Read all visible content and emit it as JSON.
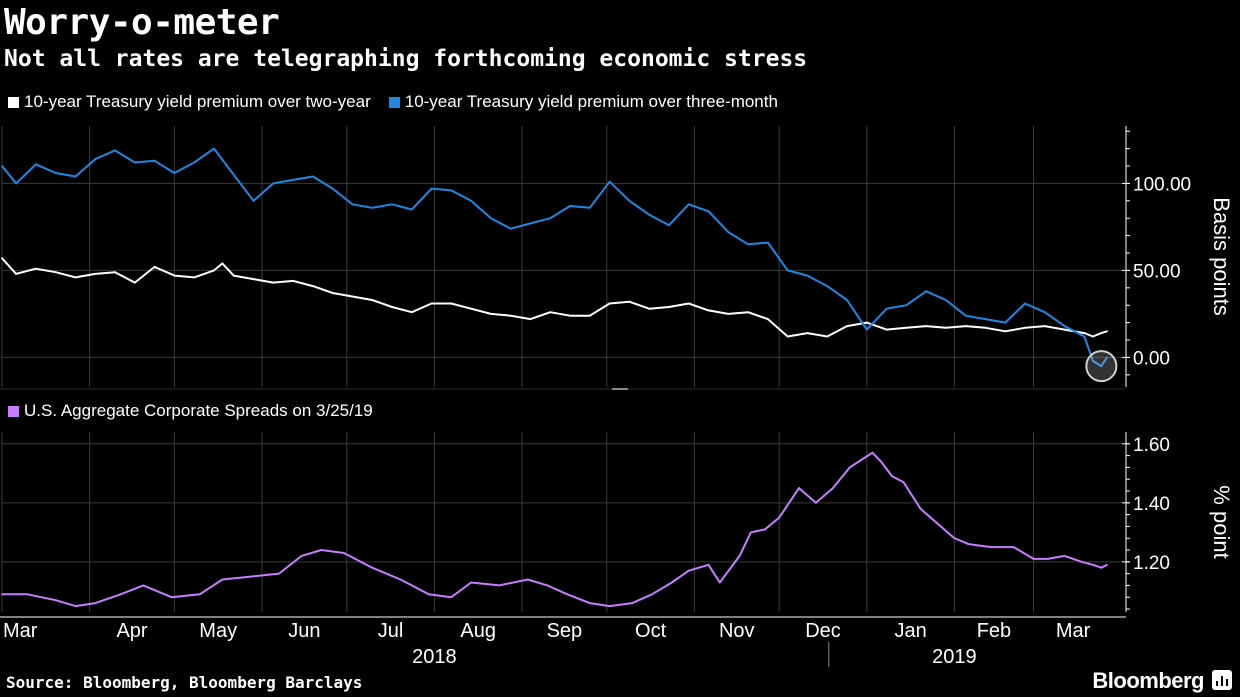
{
  "header": {
    "title": "Worry-o-meter",
    "subtitle": "Not all rates are telegraphing forthcoming economic stress"
  },
  "footer": {
    "source": "Source: Bloomberg, Bloomberg Barclays",
    "brand": "Bloomberg"
  },
  "colors": {
    "background": "#000000",
    "grid": "#3a3a3a",
    "series_2y": "#ffffff",
    "series_3m": "#1e88e5",
    "series_corp": "#c77dff"
  },
  "chart_data": [
    {
      "type": "line",
      "x_type": "date",
      "x_range": [
        "2018-03-01",
        "2019-03-27"
      ],
      "ylabel": "Basis points",
      "ylim": [
        -17,
        133
      ],
      "yticks": [
        0,
        50,
        100
      ],
      "ytick_labels": [
        "0.00",
        "50.00",
        "100.00"
      ],
      "legend_position": "top-left",
      "grid": true,
      "series": [
        {
          "name": "10-year Treasury yield premium over two-year",
          "color": "#ffffff",
          "points": [
            [
              "2018-03-01",
              57
            ],
            [
              "2018-03-06",
              48
            ],
            [
              "2018-03-13",
              51
            ],
            [
              "2018-03-20",
              49
            ],
            [
              "2018-03-27",
              46
            ],
            [
              "2018-04-03",
              48
            ],
            [
              "2018-04-10",
              49
            ],
            [
              "2018-04-17",
              43
            ],
            [
              "2018-04-24",
              52
            ],
            [
              "2018-05-01",
              47
            ],
            [
              "2018-05-08",
              46
            ],
            [
              "2018-05-15",
              50
            ],
            [
              "2018-05-18",
              54
            ],
            [
              "2018-05-22",
              47
            ],
            [
              "2018-05-29",
              45
            ],
            [
              "2018-06-05",
              43
            ],
            [
              "2018-06-12",
              44
            ],
            [
              "2018-06-19",
              41
            ],
            [
              "2018-06-26",
              37
            ],
            [
              "2018-07-03",
              35
            ],
            [
              "2018-07-10",
              33
            ],
            [
              "2018-07-17",
              29
            ],
            [
              "2018-07-24",
              26
            ],
            [
              "2018-07-31",
              31
            ],
            [
              "2018-08-07",
              31
            ],
            [
              "2018-08-14",
              28
            ],
            [
              "2018-08-21",
              25
            ],
            [
              "2018-08-28",
              24
            ],
            [
              "2018-09-04",
              22
            ],
            [
              "2018-09-11",
              26
            ],
            [
              "2018-09-18",
              24
            ],
            [
              "2018-09-25",
              24
            ],
            [
              "2018-10-02",
              31
            ],
            [
              "2018-10-09",
              32
            ],
            [
              "2018-10-16",
              28
            ],
            [
              "2018-10-23",
              29
            ],
            [
              "2018-10-30",
              31
            ],
            [
              "2018-11-06",
              27
            ],
            [
              "2018-11-13",
              25
            ],
            [
              "2018-11-20",
              26
            ],
            [
              "2018-11-27",
              22
            ],
            [
              "2018-12-04",
              12
            ],
            [
              "2018-12-11",
              14
            ],
            [
              "2018-12-18",
              12
            ],
            [
              "2018-12-25",
              18
            ],
            [
              "2019-01-01",
              20
            ],
            [
              "2019-01-08",
              16
            ],
            [
              "2019-01-15",
              17
            ],
            [
              "2019-01-22",
              18
            ],
            [
              "2019-01-29",
              17
            ],
            [
              "2019-02-05",
              18
            ],
            [
              "2019-02-12",
              17
            ],
            [
              "2019-02-19",
              15
            ],
            [
              "2019-02-26",
              17
            ],
            [
              "2019-03-05",
              18
            ],
            [
              "2019-03-12",
              16
            ],
            [
              "2019-03-19",
              14
            ],
            [
              "2019-03-22",
              12
            ],
            [
              "2019-03-25",
              14
            ],
            [
              "2019-03-27",
              15
            ]
          ]
        },
        {
          "name": "10-year Treasury yield premium over three-month",
          "color": "#1e88e5",
          "points": [
            [
              "2018-03-01",
              110
            ],
            [
              "2018-03-06",
              100
            ],
            [
              "2018-03-13",
              111
            ],
            [
              "2018-03-20",
              106
            ],
            [
              "2018-03-27",
              104
            ],
            [
              "2018-04-03",
              114
            ],
            [
              "2018-04-10",
              119
            ],
            [
              "2018-04-17",
              112
            ],
            [
              "2018-04-24",
              113
            ],
            [
              "2018-05-01",
              106
            ],
            [
              "2018-05-08",
              112
            ],
            [
              "2018-05-15",
              120
            ],
            [
              "2018-05-22",
              105
            ],
            [
              "2018-05-29",
              90
            ],
            [
              "2018-06-05",
              100
            ],
            [
              "2018-06-12",
              102
            ],
            [
              "2018-06-19",
              104
            ],
            [
              "2018-06-26",
              97
            ],
            [
              "2018-07-03",
              88
            ],
            [
              "2018-07-10",
              86
            ],
            [
              "2018-07-17",
              88
            ],
            [
              "2018-07-24",
              85
            ],
            [
              "2018-07-31",
              97
            ],
            [
              "2018-08-07",
              96
            ],
            [
              "2018-08-14",
              90
            ],
            [
              "2018-08-21",
              80
            ],
            [
              "2018-08-28",
              74
            ],
            [
              "2018-09-04",
              77
            ],
            [
              "2018-09-11",
              80
            ],
            [
              "2018-09-18",
              87
            ],
            [
              "2018-09-25",
              86
            ],
            [
              "2018-10-02",
              101
            ],
            [
              "2018-10-09",
              90
            ],
            [
              "2018-10-16",
              82
            ],
            [
              "2018-10-23",
              76
            ],
            [
              "2018-10-30",
              88
            ],
            [
              "2018-11-06",
              84
            ],
            [
              "2018-11-13",
              72
            ],
            [
              "2018-11-20",
              65
            ],
            [
              "2018-11-27",
              66
            ],
            [
              "2018-12-04",
              50
            ],
            [
              "2018-12-11",
              47
            ],
            [
              "2018-12-18",
              41
            ],
            [
              "2018-12-25",
              33
            ],
            [
              "2019-01-01",
              16
            ],
            [
              "2019-01-08",
              28
            ],
            [
              "2019-01-15",
              30
            ],
            [
              "2019-01-22",
              38
            ],
            [
              "2019-01-29",
              33
            ],
            [
              "2019-02-05",
              24
            ],
            [
              "2019-02-12",
              22
            ],
            [
              "2019-02-19",
              20
            ],
            [
              "2019-02-26",
              31
            ],
            [
              "2019-03-05",
              26
            ],
            [
              "2019-03-12",
              18
            ],
            [
              "2019-03-19",
              12
            ],
            [
              "2019-03-22",
              -2
            ],
            [
              "2019-03-25",
              -5
            ],
            [
              "2019-03-27",
              0
            ]
          ]
        }
      ]
    },
    {
      "type": "line",
      "x_type": "date",
      "x_range": [
        "2018-03-01",
        "2019-03-27"
      ],
      "ylabel": "% point",
      "ylim": [
        1.03,
        1.64
      ],
      "yticks": [
        1.2,
        1.4,
        1.6
      ],
      "ytick_labels": [
        "1.20",
        "1.40",
        "1.60"
      ],
      "legend_position": "top-left",
      "grid": true,
      "series": [
        {
          "name": "U.S. Aggregate Corporate Spreads on 3/25/19",
          "color": "#c77dff",
          "points": [
            [
              "2018-03-01",
              1.09
            ],
            [
              "2018-03-10",
              1.09
            ],
            [
              "2018-03-20",
              1.07
            ],
            [
              "2018-03-27",
              1.05
            ],
            [
              "2018-04-03",
              1.06
            ],
            [
              "2018-04-12",
              1.09
            ],
            [
              "2018-04-20",
              1.12
            ],
            [
              "2018-04-30",
              1.08
            ],
            [
              "2018-05-10",
              1.09
            ],
            [
              "2018-05-18",
              1.14
            ],
            [
              "2018-05-28",
              1.15
            ],
            [
              "2018-06-07",
              1.16
            ],
            [
              "2018-06-15",
              1.22
            ],
            [
              "2018-06-22",
              1.24
            ],
            [
              "2018-06-30",
              1.23
            ],
            [
              "2018-07-10",
              1.18
            ],
            [
              "2018-07-20",
              1.14
            ],
            [
              "2018-07-30",
              1.09
            ],
            [
              "2018-08-07",
              1.08
            ],
            [
              "2018-08-14",
              1.13
            ],
            [
              "2018-08-24",
              1.12
            ],
            [
              "2018-09-03",
              1.14
            ],
            [
              "2018-09-10",
              1.12
            ],
            [
              "2018-09-17",
              1.09
            ],
            [
              "2018-09-25",
              1.06
            ],
            [
              "2018-10-02",
              1.05
            ],
            [
              "2018-10-10",
              1.06
            ],
            [
              "2018-10-17",
              1.09
            ],
            [
              "2018-10-24",
              1.13
            ],
            [
              "2018-10-30",
              1.17
            ],
            [
              "2018-11-06",
              1.19
            ],
            [
              "2018-11-10",
              1.13
            ],
            [
              "2018-11-17",
              1.22
            ],
            [
              "2018-11-21",
              1.3
            ],
            [
              "2018-11-26",
              1.31
            ],
            [
              "2018-12-01",
              1.35
            ],
            [
              "2018-12-08",
              1.45
            ],
            [
              "2018-12-14",
              1.4
            ],
            [
              "2018-12-20",
              1.45
            ],
            [
              "2018-12-26",
              1.52
            ],
            [
              "2019-01-03",
              1.57
            ],
            [
              "2019-01-06",
              1.54
            ],
            [
              "2019-01-10",
              1.49
            ],
            [
              "2019-01-14",
              1.47
            ],
            [
              "2019-01-20",
              1.38
            ],
            [
              "2019-01-26",
              1.33
            ],
            [
              "2019-02-01",
              1.28
            ],
            [
              "2019-02-06",
              1.26
            ],
            [
              "2019-02-14",
              1.25
            ],
            [
              "2019-02-22",
              1.25
            ],
            [
              "2019-03-01",
              1.21
            ],
            [
              "2019-03-06",
              1.21
            ],
            [
              "2019-03-12",
              1.22
            ],
            [
              "2019-03-18",
              1.2
            ],
            [
              "2019-03-22",
              1.19
            ],
            [
              "2019-03-25",
              1.18
            ],
            [
              "2019-03-27",
              1.19
            ]
          ]
        }
      ]
    }
  ],
  "x_axis": {
    "months": [
      {
        "label": "Mar",
        "date": "2018-03-01"
      },
      {
        "label": "Apr",
        "date": "2018-04-01"
      },
      {
        "label": "May",
        "date": "2018-05-01"
      },
      {
        "label": "Jun",
        "date": "2018-06-01"
      },
      {
        "label": "Jul",
        "date": "2018-07-01"
      },
      {
        "label": "Aug",
        "date": "2018-08-01"
      },
      {
        "label": "Sep",
        "date": "2018-09-01"
      },
      {
        "label": "Oct",
        "date": "2018-10-01"
      },
      {
        "label": "Nov",
        "date": "2018-11-01"
      },
      {
        "label": "Dec",
        "date": "2018-12-01"
      },
      {
        "label": "Jan",
        "date": "2019-01-01"
      },
      {
        "label": "Feb",
        "date": "2019-02-01"
      },
      {
        "label": "Mar",
        "date": "2019-03-01"
      }
    ],
    "years": [
      {
        "label": "2018",
        "date": "2018-08-01"
      },
      {
        "label": "2019",
        "date": "2019-02-01"
      }
    ]
  },
  "highlight": {
    "series": "10-year Treasury yield premium over three-month",
    "date": "2019-03-25",
    "value": -5
  }
}
